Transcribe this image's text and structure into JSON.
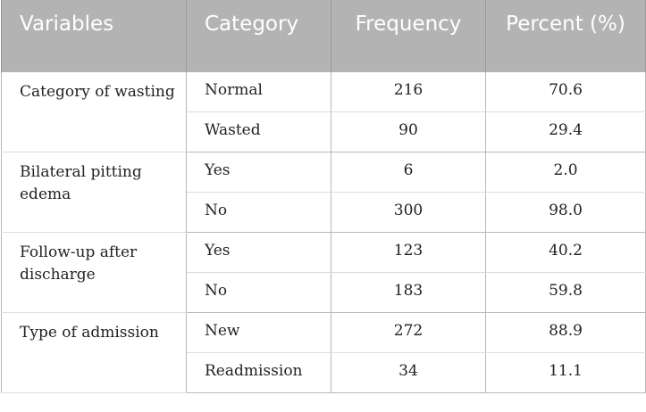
{
  "header": {
    "variables": "Variables",
    "category": "Category",
    "frequency": "Frequency",
    "percent": "Percent (%)"
  },
  "groups": [
    {
      "variable": "Category of wasting",
      "rows": [
        {
          "category": "Normal",
          "frequency": "216",
          "percent": "70.6"
        },
        {
          "category": "Wasted",
          "frequency": "90",
          "percent": "29.4"
        }
      ]
    },
    {
      "variable": "Bilateral pitting edema",
      "rows": [
        {
          "category": "Yes",
          "frequency": "6",
          "percent": "2.0"
        },
        {
          "category": "No",
          "frequency": "300",
          "percent": "98.0"
        }
      ]
    },
    {
      "variable": "Follow-up after discharge",
      "rows": [
        {
          "category": "Yes",
          "frequency": "123",
          "percent": "40.2"
        },
        {
          "category": "No",
          "frequency": "183",
          "percent": "59.8"
        }
      ]
    },
    {
      "variable": "Type of admission",
      "rows": [
        {
          "category": "New",
          "frequency": "272",
          "percent": "88.9"
        },
        {
          "category": "Readmission",
          "frequency": "34",
          "percent": "11.1"
        }
      ]
    }
  ]
}
